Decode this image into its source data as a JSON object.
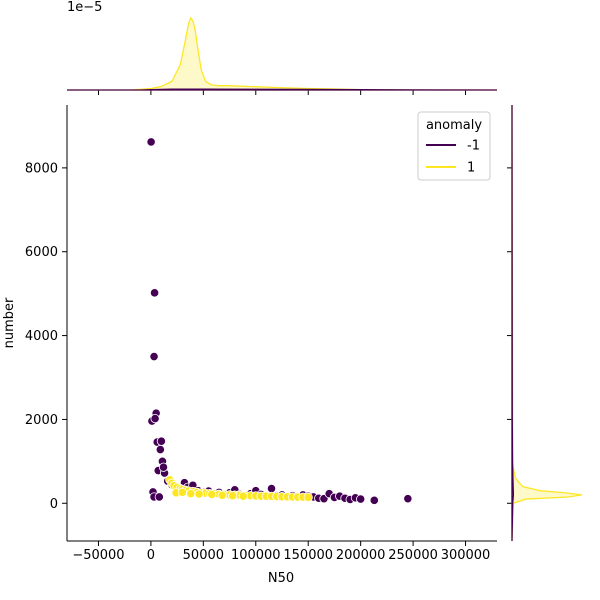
{
  "chart_data": {
    "type": "scatter",
    "xlabel": "N50",
    "ylabel": "number",
    "xlim": [
      -80000,
      330000
    ],
    "ylim": [
      -900,
      9500
    ],
    "xticks": [
      -50000,
      0,
      50000,
      100000,
      150000,
      200000,
      250000,
      300000
    ],
    "xtick_labels": [
      "−50000",
      "0",
      "50000",
      "100000",
      "150000",
      "200000",
      "250000",
      "300000"
    ],
    "yticks": [
      0,
      2000,
      4000,
      6000,
      8000
    ],
    "ytick_labels": [
      "0",
      "2000",
      "4000",
      "6000",
      "8000"
    ],
    "top_marginal_offset_label": "1e−5",
    "legend": {
      "title": "anomaly",
      "placement": "top-right",
      "entries": [
        {
          "label": "-1",
          "color": "#440154"
        },
        {
          "label": "1",
          "color": "#fde725"
        }
      ]
    },
    "series": [
      {
        "name": "-1",
        "color": "#440154",
        "points": [
          [
            200,
            8620
          ],
          [
            3500,
            5020
          ],
          [
            3000,
            3500
          ],
          [
            5000,
            2150
          ],
          [
            1000,
            1960
          ],
          [
            4000,
            2020
          ],
          [
            6000,
            1460
          ],
          [
            10000,
            1480
          ],
          [
            9000,
            1280
          ],
          [
            7000,
            780
          ],
          [
            11000,
            1000
          ],
          [
            13000,
            720
          ],
          [
            12000,
            860
          ],
          [
            2000,
            270
          ],
          [
            3000,
            150
          ],
          [
            8000,
            150
          ],
          [
            16000,
            530
          ],
          [
            20000,
            440
          ],
          [
            25000,
            350
          ],
          [
            28000,
            330
          ],
          [
            32000,
            490
          ],
          [
            35000,
            380
          ],
          [
            40000,
            430
          ],
          [
            45000,
            300
          ],
          [
            50000,
            260
          ],
          [
            55000,
            290
          ],
          [
            60000,
            230
          ],
          [
            65000,
            260
          ],
          [
            70000,
            200
          ],
          [
            75000,
            250
          ],
          [
            80000,
            320
          ],
          [
            85000,
            210
          ],
          [
            90000,
            190
          ],
          [
            95000,
            230
          ],
          [
            100000,
            300
          ],
          [
            105000,
            210
          ],
          [
            110000,
            180
          ],
          [
            115000,
            350
          ],
          [
            120000,
            180
          ],
          [
            125000,
            200
          ],
          [
            130000,
            160
          ],
          [
            135000,
            180
          ],
          [
            140000,
            140
          ],
          [
            145000,
            200
          ],
          [
            150000,
            170
          ],
          [
            155000,
            150
          ],
          [
            160000,
            120
          ],
          [
            165000,
            110
          ],
          [
            170000,
            230
          ],
          [
            175000,
            140
          ],
          [
            180000,
            170
          ],
          [
            185000,
            120
          ],
          [
            190000,
            90
          ],
          [
            195000,
            130
          ],
          [
            200000,
            100
          ],
          [
            213000,
            70
          ],
          [
            245000,
            110
          ]
        ]
      },
      {
        "name": "1",
        "color": "#fde725",
        "points": [
          [
            18000,
            560
          ],
          [
            20000,
            480
          ],
          [
            22000,
            420
          ],
          [
            25000,
            380
          ],
          [
            28000,
            350
          ],
          [
            30000,
            330
          ],
          [
            33000,
            310
          ],
          [
            36000,
            290
          ],
          [
            40000,
            280
          ],
          [
            44000,
            260
          ],
          [
            48000,
            250
          ],
          [
            52000,
            240
          ],
          [
            56000,
            230
          ],
          [
            60000,
            225
          ],
          [
            65000,
            215
          ],
          [
            70000,
            210
          ],
          [
            75000,
            200
          ],
          [
            80000,
            195
          ],
          [
            85000,
            190
          ],
          [
            90000,
            185
          ],
          [
            95000,
            180
          ],
          [
            100000,
            175
          ],
          [
            105000,
            170
          ],
          [
            110000,
            168
          ],
          [
            115000,
            165
          ],
          [
            120000,
            160
          ],
          [
            125000,
            158
          ],
          [
            130000,
            155
          ],
          [
            135000,
            150
          ],
          [
            140000,
            148
          ],
          [
            145000,
            145
          ],
          [
            150000,
            142
          ],
          [
            24000,
            250
          ],
          [
            30000,
            260
          ],
          [
            38000,
            230
          ],
          [
            46000,
            220
          ],
          [
            58000,
            210
          ],
          [
            68000,
            190
          ],
          [
            78000,
            180
          ],
          [
            88000,
            170
          ]
        ]
      }
    ],
    "marginal_x": {
      "series": [
        {
          "name": "1",
          "color": "#fde725",
          "x": [
            -80000,
            -20000,
            0,
            10000,
            20000,
            28000,
            33000,
            36000,
            38000,
            40000,
            42000,
            45000,
            48000,
            52000,
            58000,
            65000,
            75000,
            90000,
            110000,
            130000,
            150000,
            170000,
            200000,
            250000,
            330000
          ],
          "density": [
            0,
            0,
            0.02,
            0.05,
            0.12,
            0.35,
            0.7,
            0.93,
            1.0,
            0.96,
            0.85,
            0.55,
            0.28,
            0.12,
            0.07,
            0.06,
            0.06,
            0.05,
            0.04,
            0.03,
            0.02,
            0.015,
            0.005,
            0.0,
            0
          ]
        },
        {
          "name": "-1",
          "color": "#440154",
          "x": [
            -80000,
            -10000,
            0,
            20000,
            50000,
            100000,
            150000,
            200000,
            250000,
            330000
          ],
          "density": [
            0,
            0,
            0.004,
            0.012,
            0.012,
            0.01,
            0.008,
            0.005,
            0.002,
            0
          ]
        }
      ]
    },
    "marginal_y": {
      "series": [
        {
          "name": "1",
          "color": "#fde725",
          "y": [
            -900,
            0,
            100,
            150,
            200,
            250,
            300,
            400,
            600,
            900,
            9500
          ],
          "density": [
            0,
            0.02,
            0.2,
            0.8,
            1.0,
            0.75,
            0.4,
            0.15,
            0.05,
            0.01,
            0
          ]
        },
        {
          "name": "-1",
          "color": "#440154",
          "y": [
            -900,
            0,
            200,
            500,
            1000,
            2000,
            9500
          ],
          "density": [
            0,
            0.01,
            0.02,
            0.015,
            0.008,
            0.004,
            0
          ]
        }
      ]
    }
  }
}
